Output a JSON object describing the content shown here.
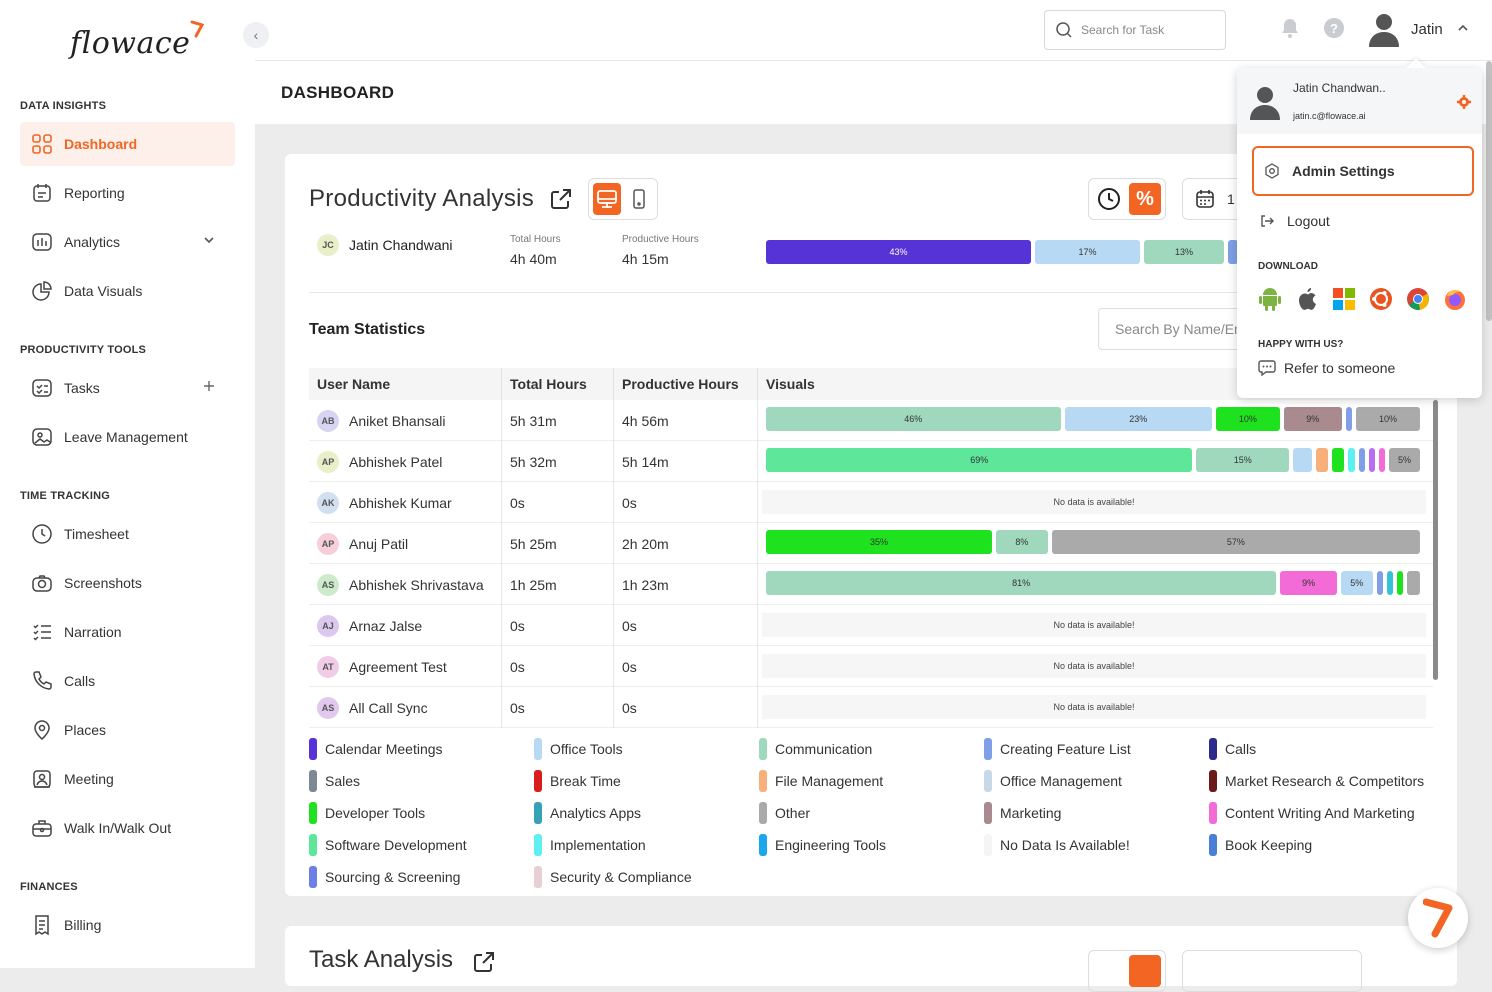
{
  "brand": {
    "logo_text": "flowace",
    "accent": "#f26522"
  },
  "sidebar": {
    "sections": [
      {
        "title": "DATA INSIGHTS"
      },
      {
        "title": "PRODUCTIVITY TOOLS"
      },
      {
        "title": "TIME TRACKING"
      },
      {
        "title": "FINANCES"
      }
    ],
    "items": [
      {
        "label": "Dashboard",
        "icon": "dashboard-icon",
        "active": true
      },
      {
        "label": "Reporting",
        "icon": "reporting-icon"
      },
      {
        "label": "Analytics",
        "icon": "analytics-icon",
        "trail": "chevron-down-icon"
      },
      {
        "label": "Data Visuals",
        "icon": "pie-chart-icon"
      },
      {
        "label": "Tasks",
        "icon": "tasks-icon",
        "trail": "plus-icon"
      },
      {
        "label": "Leave Management",
        "icon": "leave-icon"
      },
      {
        "label": "Timesheet",
        "icon": "clock-icon"
      },
      {
        "label": "Screenshots",
        "icon": "camera-icon"
      },
      {
        "label": "Narration",
        "icon": "list-icon"
      },
      {
        "label": "Calls",
        "icon": "phone-icon"
      },
      {
        "label": "Places",
        "icon": "location-icon"
      },
      {
        "label": "Meeting",
        "icon": "meeting-icon"
      },
      {
        "label": "Walk In/Walk Out",
        "icon": "briefcase-icon"
      },
      {
        "label": "Billing",
        "icon": "billing-icon"
      }
    ]
  },
  "topbar": {
    "search_placeholder": "Search for Task",
    "user_name": "Jatin"
  },
  "page": {
    "title": "DASHBOARD"
  },
  "productivity": {
    "title": "Productivity Analysis",
    "date_text": "1",
    "self": {
      "initials": "JC",
      "name": "Jatin Chandwani",
      "total_label": "Total Hours",
      "total": "4h 40m",
      "prod_label": "Productive Hours",
      "prod": "4h 15m"
    },
    "self_bars": [
      {
        "label": "43%",
        "color": "#5533d6"
      },
      {
        "label": "17%",
        "color": "#b8d9f3"
      },
      {
        "label": "13%",
        "color": "#9fd8bc"
      },
      {
        "label": "",
        "color": "#7f9fe6"
      }
    ]
  },
  "team": {
    "title": "Team Statistics",
    "search_placeholder": "Search By Name/Email",
    "columns": [
      "User Name",
      "Total Hours",
      "Productive Hours",
      "Visuals"
    ],
    "nodata": "No data is available!",
    "rows": [
      {
        "initials": "AB",
        "name": "Aniket Bhansali",
        "total": "5h 31m",
        "prod": "4h 56m",
        "avatar": "#d7d3f2",
        "bars": [
          {
            "l": "46%",
            "c": "#9fd8bc",
            "w": 46
          },
          {
            "l": "23%",
            "c": "#b8d9f3",
            "w": 23
          },
          {
            "l": "10%",
            "c": "#1de21d",
            "w": 10
          },
          {
            "l": "9%",
            "c": "#a88a8f",
            "w": 9
          },
          {
            "l": "",
            "c": "#7f9fe6",
            "w": 1
          },
          {
            "l": "10%",
            "c": "#aaaaaa",
            "w": 10
          }
        ]
      },
      {
        "initials": "AP",
        "name": "Abhishek Patel",
        "total": "5h 32m",
        "prod": "5h 14m",
        "avatar": "#e8efc9",
        "bars": [
          {
            "l": "69%",
            "c": "#5ee69a",
            "w": 69
          },
          {
            "l": "15%",
            "c": "#9fd8bc",
            "w": 15
          },
          {
            "l": "",
            "c": "#b8d9f3",
            "w": 3
          },
          {
            "l": "",
            "c": "#f7b07a",
            "w": 2
          },
          {
            "l": "",
            "c": "#1de21d",
            "w": 2
          },
          {
            "l": "",
            "c": "#5ef0f0",
            "w": 1
          },
          {
            "l": "",
            "c": "#7f9fe6",
            "w": 1
          },
          {
            "l": "",
            "c": "#b96cf0",
            "w": 1
          },
          {
            "l": "",
            "c": "#f26bd6",
            "w": 1
          },
          {
            "l": "5%",
            "c": "#aaaaaa",
            "w": 5
          }
        ]
      },
      {
        "initials": "AK",
        "name": "Abhishek Kumar",
        "total": "0s",
        "prod": "0s",
        "avatar": "#d1dff0",
        "bars": []
      },
      {
        "initials": "AP",
        "name": "Anuj Patil",
        "total": "5h 25m",
        "prod": "2h 20m",
        "avatar": "#f6cfd9",
        "bars": [
          {
            "l": "35%",
            "c": "#1de21d",
            "w": 35
          },
          {
            "l": "8%",
            "c": "#9fd8bc",
            "w": 8
          },
          {
            "l": "57%",
            "c": "#aaaaaa",
            "w": 57
          }
        ]
      },
      {
        "initials": "AS",
        "name": "Abhishek Shrivastava",
        "total": "1h 25m",
        "prod": "1h 23m",
        "avatar": "#cdeacb",
        "bars": [
          {
            "l": "81%",
            "c": "#9fd8bc",
            "w": 81
          },
          {
            "l": "9%",
            "c": "#f26bd6",
            "w": 9
          },
          {
            "l": "5%",
            "c": "#b8d9f3",
            "w": 5
          },
          {
            "l": "",
            "c": "#7f9fe6",
            "w": 1
          },
          {
            "l": "",
            "c": "#36c2d6",
            "w": 1
          },
          {
            "l": "",
            "c": "#1de21d",
            "w": 1
          },
          {
            "l": "",
            "c": "#aaaaaa",
            "w": 2
          }
        ]
      },
      {
        "initials": "AJ",
        "name": "Arnaz Jalse",
        "total": "0s",
        "prod": "0s",
        "avatar": "#dcc8ef",
        "bars": []
      },
      {
        "initials": "AT",
        "name": "Agreement Test",
        "total": "0s",
        "prod": "0s",
        "avatar": "#f0cce6",
        "bars": []
      },
      {
        "initials": "AS",
        "name": "All Call Sync",
        "total": "0s",
        "prod": "0s",
        "avatar": "#e3c8ee",
        "bars": []
      }
    ]
  },
  "legend": [
    {
      "label": "Calendar Meetings",
      "color": "#5533d6"
    },
    {
      "label": "Office Tools",
      "color": "#b8d9f3"
    },
    {
      "label": "Communication",
      "color": "#9fd8bc"
    },
    {
      "label": "Creating Feature List",
      "color": "#7f9fe6"
    },
    {
      "label": "Calls",
      "color": "#2d2b8c"
    },
    {
      "label": "Sales",
      "color": "#7d8896"
    },
    {
      "label": "Break Time",
      "color": "#d91c1c"
    },
    {
      "label": "File Management",
      "color": "#f7b07a"
    },
    {
      "label": "Office Management",
      "color": "#c7d8e6"
    },
    {
      "label": "Market Research & Competitors",
      "color": "#6b1a1a"
    },
    {
      "label": "Developer Tools",
      "color": "#1de21d"
    },
    {
      "label": "Analytics Apps",
      "color": "#36a2b6"
    },
    {
      "label": "Other",
      "color": "#aaaaaa"
    },
    {
      "label": "Marketing",
      "color": "#a88a8f"
    },
    {
      "label": "Content Writing And Marketing",
      "color": "#f26bd6"
    },
    {
      "label": "Software Development",
      "color": "#5ee69a"
    },
    {
      "label": "Implementation",
      "color": "#5ef0f0"
    },
    {
      "label": "Engineering Tools",
      "color": "#1aa7ec"
    },
    {
      "label": "No Data Is Available!",
      "color": "#f5f5f5"
    },
    {
      "label": "Book Keeping",
      "color": "#4a7fd6"
    },
    {
      "label": "Sourcing & Screening",
      "color": "#6b7fe6"
    },
    {
      "label": "Security & Compliance",
      "color": "#e8cfd3"
    }
  ],
  "task": {
    "title": "Task Analysis"
  },
  "popup": {
    "name": "Jatin Chandwan..",
    "email": "jatin.c@flowace.ai",
    "admin_label": "Admin Settings",
    "logout_label": "Logout",
    "download_title": "DOWNLOAD",
    "happy_title": "HAPPY WITH US?",
    "refer_label": "Refer to someone"
  }
}
